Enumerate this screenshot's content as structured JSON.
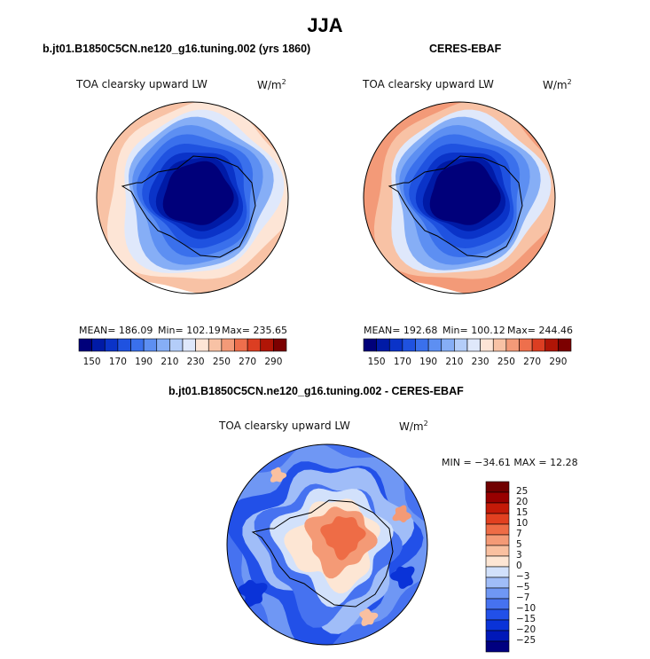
{
  "figure_title": "JJA",
  "chart_data": [
    {
      "type": "heatmap",
      "title": "b.jt01.B1850C5CN.ne120_g16.tuning.002 (yrs 1860)",
      "variable": "TOA clearsky upward LW",
      "units": "W/m",
      "units_exp": "2",
      "projection": "south polar stereographic",
      "stats": {
        "mean": "186.09",
        "min": "102.19",
        "max": "235.65"
      },
      "stats_text": {
        "mean": "MEAN= 186.09",
        "min": "Min= 102.19",
        "max": "Max= 235.65"
      },
      "levels": [
        150,
        160,
        170,
        180,
        190,
        200,
        210,
        220,
        230,
        240,
        250,
        260,
        270,
        280,
        290
      ],
      "tick_labels": [
        "150",
        "170",
        "190",
        "210",
        "230",
        "250",
        "270",
        "290"
      ]
    },
    {
      "type": "heatmap",
      "title": "CERES-EBAF",
      "variable": "TOA clearsky upward LW",
      "units": "W/m",
      "units_exp": "2",
      "projection": "south polar stereographic",
      "stats": {
        "mean": "192.68",
        "min": "100.12",
        "max": "244.46"
      },
      "stats_text": {
        "mean": "MEAN= 192.68",
        "min": "Min= 100.12",
        "max": "Max= 244.46"
      },
      "levels": [
        150,
        160,
        170,
        180,
        190,
        200,
        210,
        220,
        230,
        240,
        250,
        260,
        270,
        280,
        290
      ],
      "tick_labels": [
        "150",
        "170",
        "190",
        "210",
        "230",
        "250",
        "270",
        "290"
      ]
    },
    {
      "type": "heatmap",
      "title": "b.jt01.B1850C5CN.ne120_g16.tuning.002 - CERES-EBAF",
      "variable": "TOA clearsky upward LW",
      "units": "W/m",
      "units_exp": "2",
      "projection": "south polar stereographic",
      "stats": {
        "min": "-34.61",
        "max": "12.28"
      },
      "stats_text": "MIN = −34.61 MAX =  12.28",
      "levels": [
        -25,
        -20,
        -15,
        -10,
        -7,
        -5,
        -3,
        0,
        3,
        5,
        7,
        10,
        15,
        20,
        25
      ],
      "tick_labels": [
        "25",
        "20",
        "15",
        "10",
        "7",
        "5",
        "3",
        "0",
        "−3",
        "−5",
        "−7",
        "−10",
        "−15",
        "−20",
        "−25"
      ]
    }
  ],
  "colors": {
    "abs_scale": [
      "#00007a",
      "#001aa6",
      "#0a33c8",
      "#1f52e0",
      "#3a70ec",
      "#5d8ff2",
      "#86aef6",
      "#b4cdf9",
      "#dfe8fb",
      "#fde5d6",
      "#f8c2a5",
      "#f39a78",
      "#ee6f4c",
      "#dc3e22",
      "#b01506",
      "#7c0000"
    ],
    "diff_scale": [
      "#000080",
      "#0018b8",
      "#0a33d8",
      "#2250e8",
      "#4672f0",
      "#6f97f4",
      "#a0bdf8",
      "#d2e1fb",
      "#fde6d4",
      "#f9c0a0",
      "#f49a76",
      "#ee6c46",
      "#e24020",
      "#c41a08",
      "#980000",
      "#700000"
    ]
  }
}
